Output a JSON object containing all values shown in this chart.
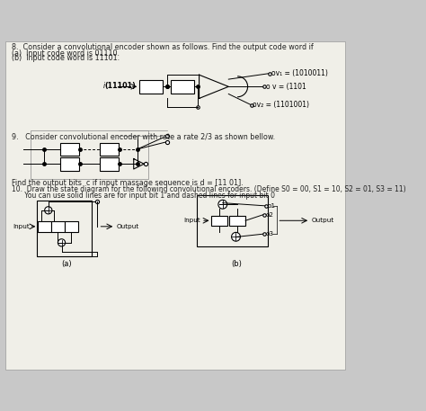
{
  "background_color": "#c8c8c8",
  "page_color": "#f0efe8",
  "title_q8": "8.  Consider a convolutional encoder shown as follows. Find the output code word if",
  "q8a": "(a)  Input code word is 01110.",
  "q8b": "(b)  Input code word is 11101.",
  "q9_text": "9.   Consider convolutional encoder with rate a rate 2/3 as shown bellow.",
  "find_text": "Find the output bits  c if input massage sequence is d = [11 01].",
  "q10_text": "10.  Draw the state diagram for the following convolutional encoders. (Define S0 = 00, S1 = 10, S2 = 01, S3 = 11)",
  "q10b_text": "      You can use solid lines are for input bit 1 and dashed lines for input bit 0",
  "label_a": "(a)",
  "label_b": "(b)",
  "v1_label": "ov₁ = (1010011)",
  "v_label": "o v = (1101",
  "v2_label": "ov₂ = (1101001)",
  "input_label": "(11101)",
  "output_label_a": "Output",
  "output_label_b": "Output",
  "input_label_a": "Input",
  "input_label_b": "Input",
  "o1_label": "o1",
  "o2_label": "o2",
  "o3_label": "o3"
}
